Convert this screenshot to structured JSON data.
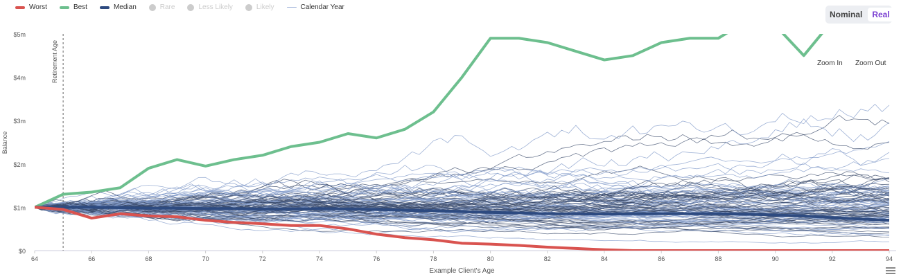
{
  "legend": [
    {
      "label": "Worst",
      "color": "#d9534f",
      "kind": "swatch",
      "enabled": true
    },
    {
      "label": "Best",
      "color": "#6dbf8e",
      "kind": "swatch",
      "enabled": true
    },
    {
      "label": "Median",
      "color": "#2d4a80",
      "kind": "swatch",
      "enabled": true
    },
    {
      "label": "Rare",
      "kind": "dot",
      "enabled": false
    },
    {
      "label": "Less Likely",
      "kind": "dot",
      "enabled": false
    },
    {
      "label": "Likely",
      "kind": "dot",
      "enabled": false
    },
    {
      "label": "Calendar Year",
      "color": "#9fb3d9",
      "kind": "line",
      "enabled": true
    }
  ],
  "toggle": {
    "options": [
      "Nominal",
      "Real"
    ],
    "selected": "Real"
  },
  "zoom": {
    "in": "Zoom In",
    "out": "Zoom Out"
  },
  "chart_data": {
    "type": "line",
    "xlabel": "Example Client's Age",
    "ylabel": "Balance",
    "xlim": [
      64,
      94
    ],
    "ylim": [
      0,
      5000000
    ],
    "xticks": [
      "64",
      "66",
      "68",
      "70",
      "72",
      "74",
      "76",
      "78",
      "80",
      "82",
      "84",
      "86",
      "88",
      "90",
      "92",
      "94"
    ],
    "yticks": [
      "$0",
      "$1m",
      "$2m",
      "$3m",
      "$4m",
      "$5m"
    ],
    "annotation": {
      "label": "Retirement Age",
      "x": 65
    },
    "grid": false,
    "legend_position": "top-left",
    "x": [
      64,
      65,
      66,
      67,
      68,
      69,
      70,
      71,
      72,
      73,
      74,
      75,
      76,
      77,
      78,
      79,
      80,
      81,
      82,
      83,
      84,
      85,
      86,
      87,
      88,
      89,
      90,
      91,
      92,
      93,
      94
    ],
    "series": [
      {
        "name": "Best",
        "color": "#6dbf8e",
        "values": [
          1.0,
          1.3,
          1.35,
          1.45,
          1.9,
          2.1,
          1.95,
          2.1,
          2.2,
          2.4,
          2.5,
          2.7,
          2.6,
          2.8,
          3.2,
          4.0,
          4.9,
          4.9,
          4.8,
          4.6,
          4.4,
          4.5,
          4.8,
          4.9,
          4.9,
          5.3,
          5.2,
          4.5,
          5.3,
          5.5,
          5.6
        ]
      },
      {
        "name": "Median",
        "color": "#2d4a80",
        "values": [
          1.0,
          1.0,
          1.0,
          0.99,
          0.98,
          0.98,
          0.97,
          0.97,
          0.96,
          0.96,
          0.97,
          0.96,
          0.95,
          0.93,
          0.92,
          0.9,
          0.88,
          0.87,
          0.85,
          0.85,
          0.84,
          0.85,
          0.85,
          0.85,
          0.85,
          0.84,
          0.82,
          0.8,
          0.76,
          0.73,
          0.7
        ]
      },
      {
        "name": "Worst",
        "color": "#d9534f",
        "values": [
          1.0,
          0.95,
          0.75,
          0.85,
          0.8,
          0.78,
          0.7,
          0.65,
          0.62,
          0.58,
          0.58,
          0.5,
          0.38,
          0.3,
          0.25,
          0.17,
          0.15,
          0.12,
          0.08,
          0.05,
          0.02,
          0.0,
          0.0,
          0.0,
          0.0,
          0.0,
          0.0,
          0.0,
          0.0,
          0.0,
          0.0
        ]
      }
    ],
    "value_unit": "$m"
  }
}
